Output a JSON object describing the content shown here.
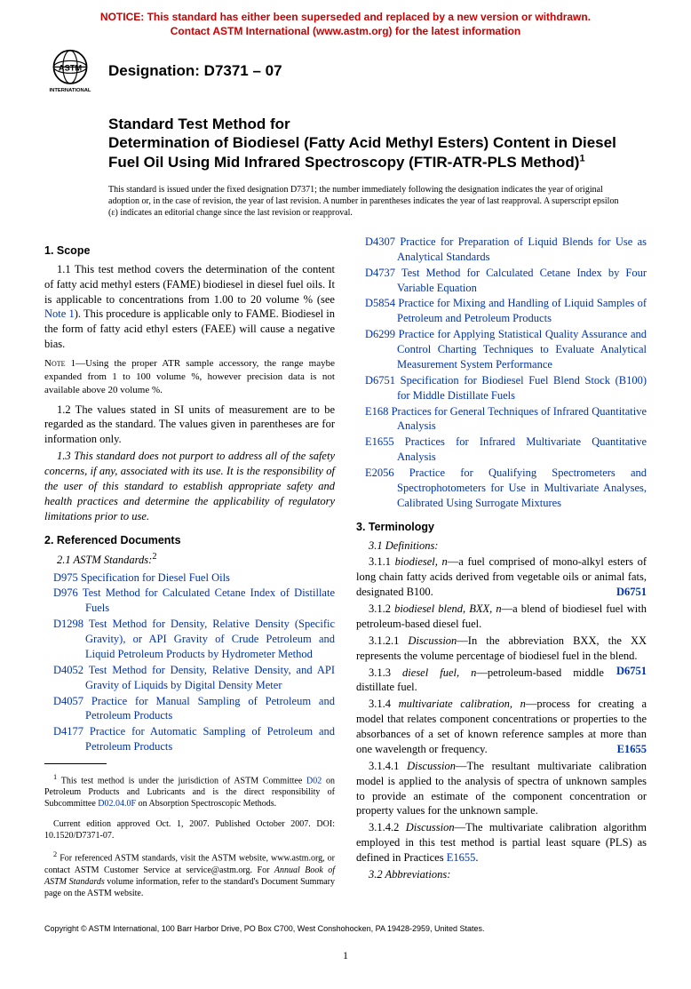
{
  "notice": {
    "line1": "NOTICE: This standard has either been superseded and replaced by a new version or withdrawn.",
    "line2": "Contact ASTM International (www.astm.org) for the latest information"
  },
  "designation": "Designation: D7371 – 07",
  "title": {
    "pre": "Standard Test Method for",
    "main": "Determination of Biodiesel (Fatty Acid Methyl Esters) Content in Diesel Fuel Oil Using Mid Infrared Spectroscopy (FTIR-ATR-PLS Method)",
    "sup": "1"
  },
  "issuance": "This standard is issued under the fixed designation D7371; the number immediately following the designation indicates the year of original adoption or, in the case of revision, the year of last revision. A number in parentheses indicates the year of last reapproval. A superscript epsilon (ε) indicates an editorial change since the last revision or reapproval.",
  "sections": {
    "scope": {
      "head": "1. Scope",
      "p1a": "1.1 This test method covers the determination of the content of fatty acid methyl esters (FAME) biodiesel in diesel fuel oils. It is applicable to concentrations from 1.00 to 20 volume % (see ",
      "p1link": "Note 1",
      "p1b": "). This procedure is applicable only to FAME. Biodiesel in the form of fatty acid ethyl esters (FAEE) will cause a negative bias.",
      "note1_label": "Note",
      "note1_num": " 1—",
      "note1": "Using the proper ATR sample accessory, the range maybe expanded from 1 to 100 volume %, however precision data is not available above 20 volume %.",
      "p2": "1.2 The values stated in SI units of measurement are to be regarded as the standard. The values given in parentheses are for information only.",
      "p3": "1.3 This standard does not purport to address all of the safety concerns, if any, associated with its use. It is the responsibility of the user of this standard to establish appropriate safety and health practices and determine the applicability of regulatory limitations prior to use."
    },
    "refs": {
      "head": "2. Referenced Documents",
      "sub": "2.1 ASTM Standards:",
      "sup": "2",
      "left": [
        {
          "id": "D975",
          "txt": "Specification for Diesel Fuel Oils"
        },
        {
          "id": "D976",
          "txt": "Test Method for Calculated Cetane Index of Distillate Fuels"
        },
        {
          "id": "D1298",
          "txt": "Test Method for Density, Relative Density (Specific Gravity), or API Gravity of Crude Petroleum and Liquid Petroleum Products by Hydrometer Method"
        },
        {
          "id": "D4052",
          "txt": "Test Method for Density, Relative Density, and API Gravity of Liquids by Digital Density Meter"
        },
        {
          "id": "D4057",
          "txt": "Practice for Manual Sampling of Petroleum and Petroleum Products"
        },
        {
          "id": "D4177",
          "txt": "Practice for Automatic Sampling of Petroleum and Petroleum Products"
        }
      ],
      "right": [
        {
          "id": "D4307",
          "txt": "Practice for Preparation of Liquid Blends for Use as Analytical Standards"
        },
        {
          "id": "D4737",
          "txt": "Test Method for Calculated Cetane Index by Four Variable Equation"
        },
        {
          "id": "D5854",
          "txt": "Practice for Mixing and Handling of Liquid Samples of Petroleum and Petroleum Products"
        },
        {
          "id": "D6299",
          "txt": "Practice for Applying Statistical Quality Assurance and Control Charting Techniques to Evaluate Analytical Measurement System Performance"
        },
        {
          "id": "D6751",
          "txt": "Specification for Biodiesel Fuel Blend Stock (B100) for Middle Distillate Fuels"
        },
        {
          "id": "E168",
          "txt": "Practices for General Techniques of Infrared Quantitative Analysis"
        },
        {
          "id": "E1655",
          "txt": "Practices for Infrared Multivariate Quantitative Analysis"
        },
        {
          "id": "E2056",
          "txt": "Practice for Qualifying Spectrometers and Spectrophotometers for Use in Multivariate Analyses, Calibrated Using Surrogate Mixtures"
        }
      ]
    },
    "term": {
      "head": "3. Terminology",
      "sub1": "3.1 Definitions:",
      "t1a": "3.1.1 ",
      "t1term": "biodiesel, n",
      "t1b": "—a fuel comprised of mono-alkyl esters of long chain fatty acids derived from vegetable oils or animal fats, designated B100.",
      "t1ref": "D6751",
      "t2a": "3.1.2 ",
      "t2term": "biodiesel blend, BXX, n",
      "t2b": "—a blend of biodiesel fuel with petroleum-based diesel fuel.",
      "t2d": "3.1.2.1 Discussion—In the abbreviation BXX, the XX represents the volume percentage of biodiesel fuel in the blend.",
      "t2ref": "D6751",
      "t3a": "3.1.3 ",
      "t3term": "diesel fuel, n",
      "t3b": "—petroleum-based middle distillate fuel.",
      "t4a": "3.1.4 ",
      "t4term": "multivariate calibration, n",
      "t4b": "—process for creating a model that relates component concentrations or properties to the absorbances of a set of known reference samples at more than one wavelength or frequency.",
      "t4ref": "E1655",
      "t4d1": "3.1.4.1 Discussion—The resultant multivariate calibration model is applied to the analysis of spectra of unknown samples to provide an estimate of the component concentration or property values for the unknown sample.",
      "t4d2a": "3.1.4.2 Discussion—The multivariate calibration algorithm employed in this test method is partial least square (PLS) as defined in Practices ",
      "t4d2link": "E1655",
      "t4d2b": ".",
      "sub2": "3.2 Abbreviations:"
    }
  },
  "footnotes": {
    "f1a": " This test method is under the jurisdiction of ASTM Committee ",
    "f1l1": "D02",
    "f1b": " on Petroleum Products and Lubricants and is the direct responsibility of Subcommittee ",
    "f1l2": "D02.04.0F",
    "f1c": " on Absorption Spectroscopic Methods.",
    "f1d": "Current edition approved Oct. 1, 2007. Published October 2007. DOI: 10.1520/D7371-07.",
    "f2a": " For referenced ASTM standards, visit the ASTM website, www.astm.org, or contact ASTM Customer Service at service@astm.org. For ",
    "f2i": "Annual Book of ASTM Standards",
    "f2b": " volume information, refer to the standard's Document Summary page on the ASTM website."
  },
  "copyright": "Copyright © ASTM International, 100 Barr Harbor Drive, PO Box C700, West Conshohocken, PA 19428-2959, United States.",
  "pagenum": "1"
}
